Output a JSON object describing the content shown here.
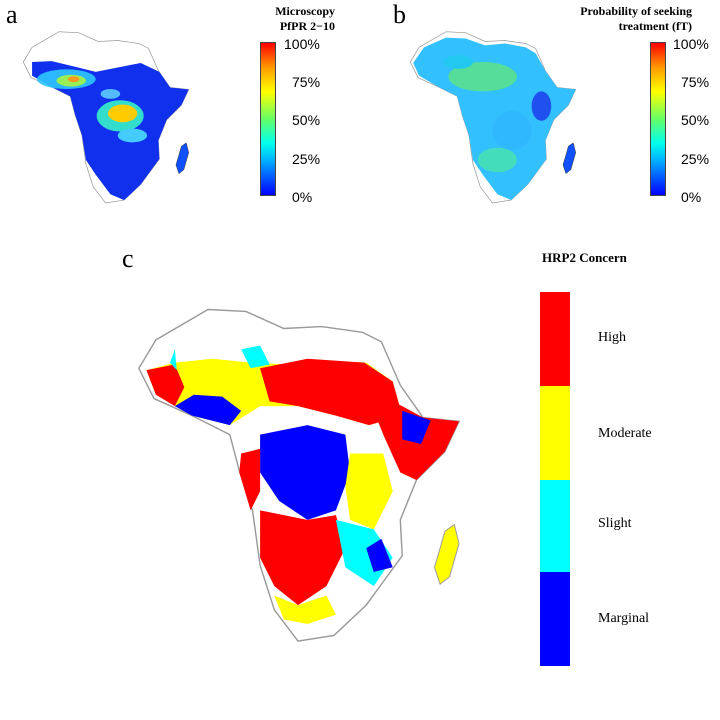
{
  "panel_a": {
    "letter": "a",
    "colorbar_title_line1": "Microscopy",
    "colorbar_title_line2": "PfPR 2−10",
    "ticks": [
      "100%",
      "75%",
      "50%",
      "25%",
      "0%"
    ]
  },
  "panel_b": {
    "letter": "b",
    "colorbar_title_line1": "Probability of seeking",
    "colorbar_title_line2": "treatment (fT)",
    "ticks": [
      "100%",
      "75%",
      "50%",
      "25%",
      "0%"
    ]
  },
  "panel_c": {
    "letter": "c",
    "legend_title": "HRP2 Concern",
    "categories": [
      {
        "label": "High",
        "color": "#ff0000"
      },
      {
        "label": "Moderate",
        "color": "#ffff00"
      },
      {
        "label": "Slight",
        "color": "#00ffff"
      },
      {
        "label": "Marginal",
        "color": "#0000ff"
      }
    ]
  },
  "colors": {
    "scale_low": "#0000ff",
    "scale_high": "#ff0000",
    "map_outline": "#999999"
  }
}
